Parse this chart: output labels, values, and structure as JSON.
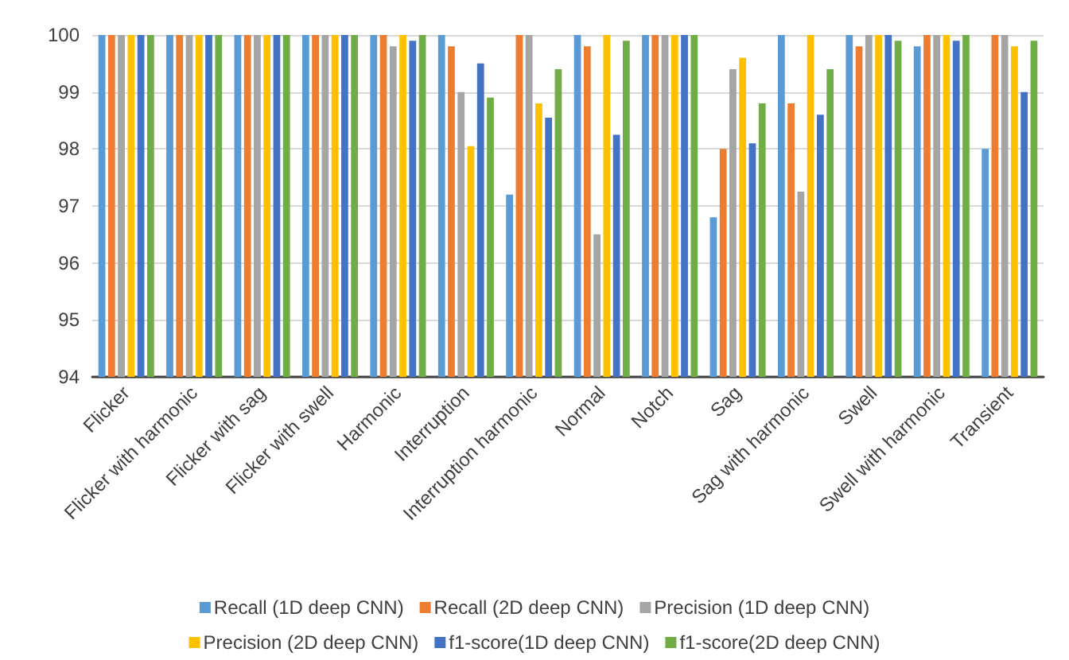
{
  "chart_data": {
    "type": "bar",
    "categories": [
      "Flicker",
      "Flicker with harmonic",
      "Flicker with sag",
      "Flicker with swell",
      "Harmonic",
      "Interruption",
      "Interruption harmonic",
      "Normal",
      "Notch",
      "Sag",
      "Sag with harmonic",
      "Swell",
      "Swell with harmonic",
      "Transient"
    ],
    "series": [
      {
        "name": "Recall (1D deep CNN)",
        "color": "#5b9bd5",
        "values": [
          100,
          100,
          100,
          100,
          100,
          100,
          97.2,
          100,
          100,
          96.8,
          100,
          100,
          99.8,
          98.0
        ]
      },
      {
        "name": "Recall (2D deep CNN)",
        "color": "#ed7d31",
        "values": [
          100,
          100,
          100,
          100,
          100,
          99.8,
          100,
          99.8,
          100,
          98.0,
          98.8,
          99.8,
          100,
          100
        ]
      },
      {
        "name": "Precision (1D deep CNN)",
        "color": "#a5a5a5",
        "values": [
          100,
          100,
          100,
          100,
          99.8,
          99.0,
          100,
          96.5,
          100,
          99.4,
          97.25,
          100,
          100,
          100
        ]
      },
      {
        "name": "Precision (2D deep CNN)",
        "color": "#ffc000",
        "values": [
          100,
          100,
          100,
          100,
          100,
          98.05,
          98.8,
          100,
          100,
          99.6,
          100,
          100,
          100,
          99.8
        ]
      },
      {
        "name": "f1-score(1D deep CNN)",
        "color": "#4472c4",
        "values": [
          100,
          100,
          100,
          100,
          99.9,
          99.5,
          98.55,
          98.25,
          100,
          98.1,
          98.6,
          100,
          99.9,
          99.0
        ]
      },
      {
        "name": "f1-score(2D deep CNN)",
        "color": "#70ad47",
        "values": [
          100,
          100,
          100,
          100,
          100,
          98.9,
          99.4,
          99.9,
          100,
          98.8,
          99.4,
          99.9,
          100,
          99.9
        ]
      }
    ],
    "ylim": [
      94,
      100
    ],
    "yticks": [
      94,
      95,
      96,
      97,
      98,
      99,
      100
    ],
    "grid": "y",
    "legend": "bottom"
  }
}
